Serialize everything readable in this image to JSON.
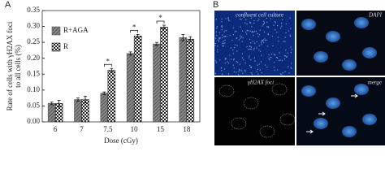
{
  "chart_data": {
    "type": "bar",
    "ylabel": [
      "Rate of cells with γH2AX foci",
      "to all cells (%)"
    ],
    "xlabel": "Dose (cGy)",
    "categories": [
      "6",
      "7",
      "7.5",
      "10",
      "15",
      "18"
    ],
    "series": [
      {
        "name": "R+AGA",
        "color": "#555555",
        "values": [
          0.058,
          0.07,
          0.09,
          0.215,
          0.245,
          0.265
        ],
        "errors": [
          0.004,
          0.005,
          0.004,
          0.005,
          0.005,
          0.01
        ]
      },
      {
        "name": "R",
        "color": "#222222",
        "values": [
          0.058,
          0.07,
          0.162,
          0.27,
          0.298,
          0.26
        ],
        "errors": [
          0.01,
          0.01,
          0.006,
          0.005,
          0.006,
          0.008
        ]
      }
    ],
    "ylim": [
      0,
      0.35
    ],
    "yticks": [
      {
        "value": 0,
        "label": "0.00"
      },
      {
        "value": 0.05,
        "label": "0.05"
      },
      {
        "value": 0.1,
        "label": "0.10"
      },
      {
        "value": 0.15,
        "label": "0.15"
      },
      {
        "value": 0.2,
        "label": "0.20"
      },
      {
        "value": 0.25,
        "label": "0.25"
      },
      {
        "value": 0.3,
        "label": "0.30"
      },
      {
        "value": 0.35,
        "label": "0.35"
      }
    ],
    "annotations": [
      {
        "text": "*",
        "x": "7.5"
      },
      {
        "text": "*",
        "x": "10"
      },
      {
        "text": "*",
        "x": "15"
      }
    ],
    "legend": "upper left"
  },
  "panel_labels": [
    "A",
    "B"
  ],
  "image_panels": [
    "confluent cell culture",
    "DAPI",
    "γH2AX foci",
    "merge"
  ]
}
